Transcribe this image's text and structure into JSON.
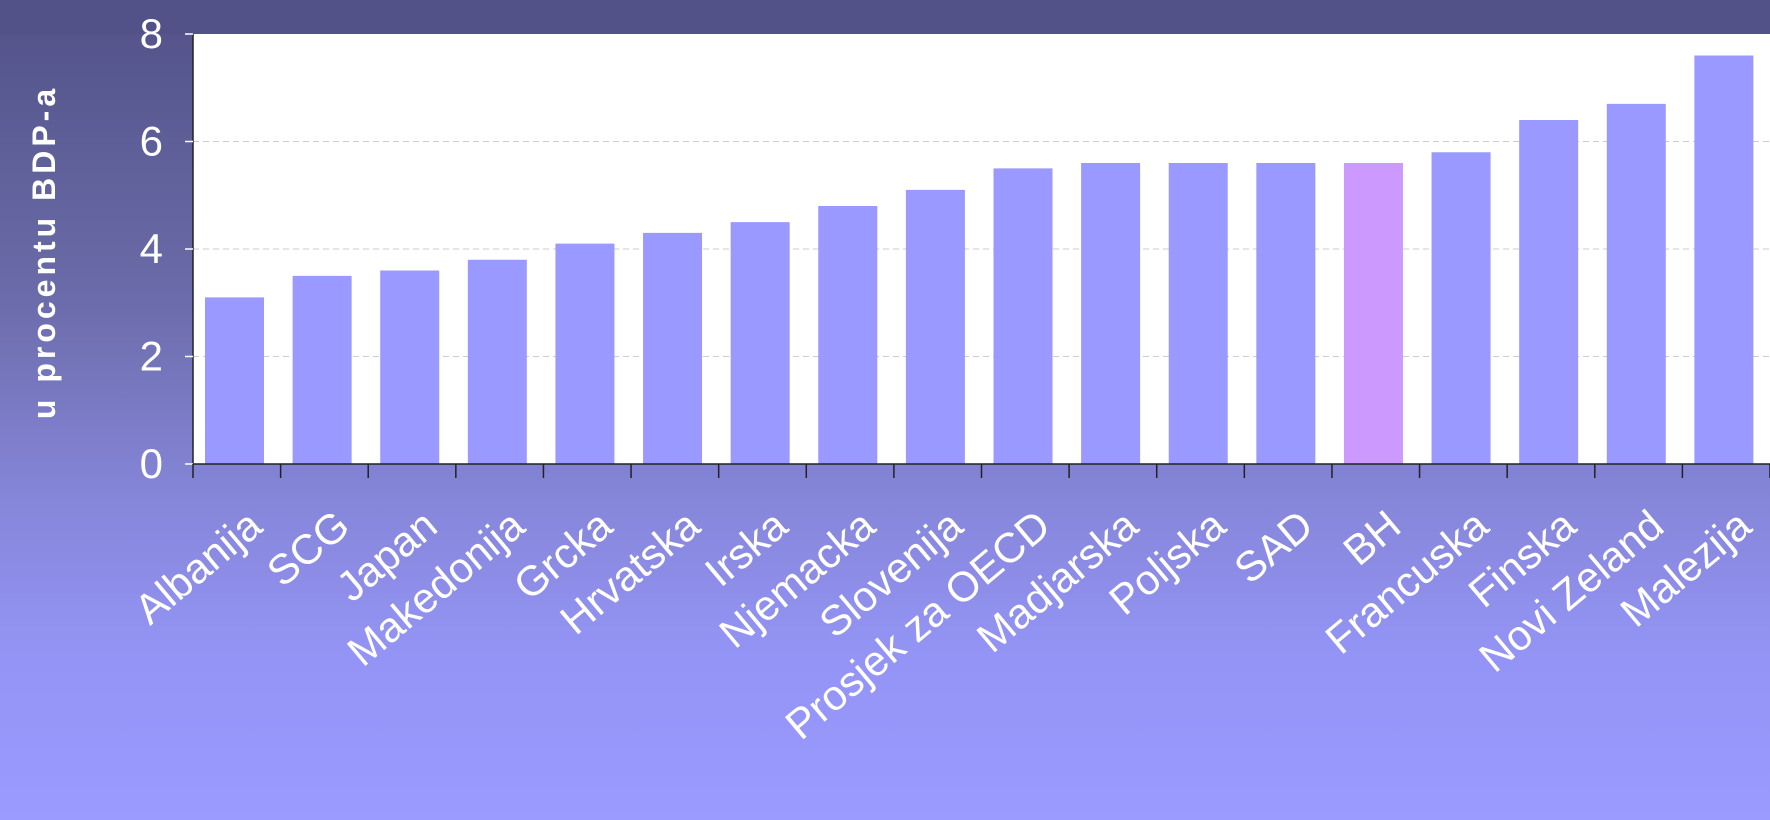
{
  "chart_data": {
    "type": "bar",
    "title": "",
    "xlabel": "",
    "ylabel": "u procentu BDP-a",
    "ylim": [
      0,
      8
    ],
    "yticks": [
      0,
      2,
      4,
      6,
      8
    ],
    "grid": true,
    "categories": [
      "Albanija",
      "SCG",
      "Japan",
      "Makedonija",
      "Grcka",
      "Hrvatska",
      "Irska",
      "Njemacka",
      "Slovenija",
      "Prosjek za OECD",
      "Madjarska",
      "Poljska",
      "SAD",
      "BH",
      "Francuska",
      "Finska",
      "Novi Zeland",
      "Malezija"
    ],
    "values": [
      3.1,
      3.5,
      3.6,
      3.8,
      4.1,
      4.3,
      4.5,
      4.8,
      5.1,
      5.5,
      5.6,
      5.6,
      5.6,
      5.6,
      5.8,
      6.4,
      6.7,
      7.6
    ],
    "colors": {
      "bar": "#9999ff",
      "highlight": "#cc99ff",
      "plot_background": "#ffffff",
      "frame": "#525288",
      "text": "#ffffff"
    },
    "highlight_category": "BH"
  }
}
